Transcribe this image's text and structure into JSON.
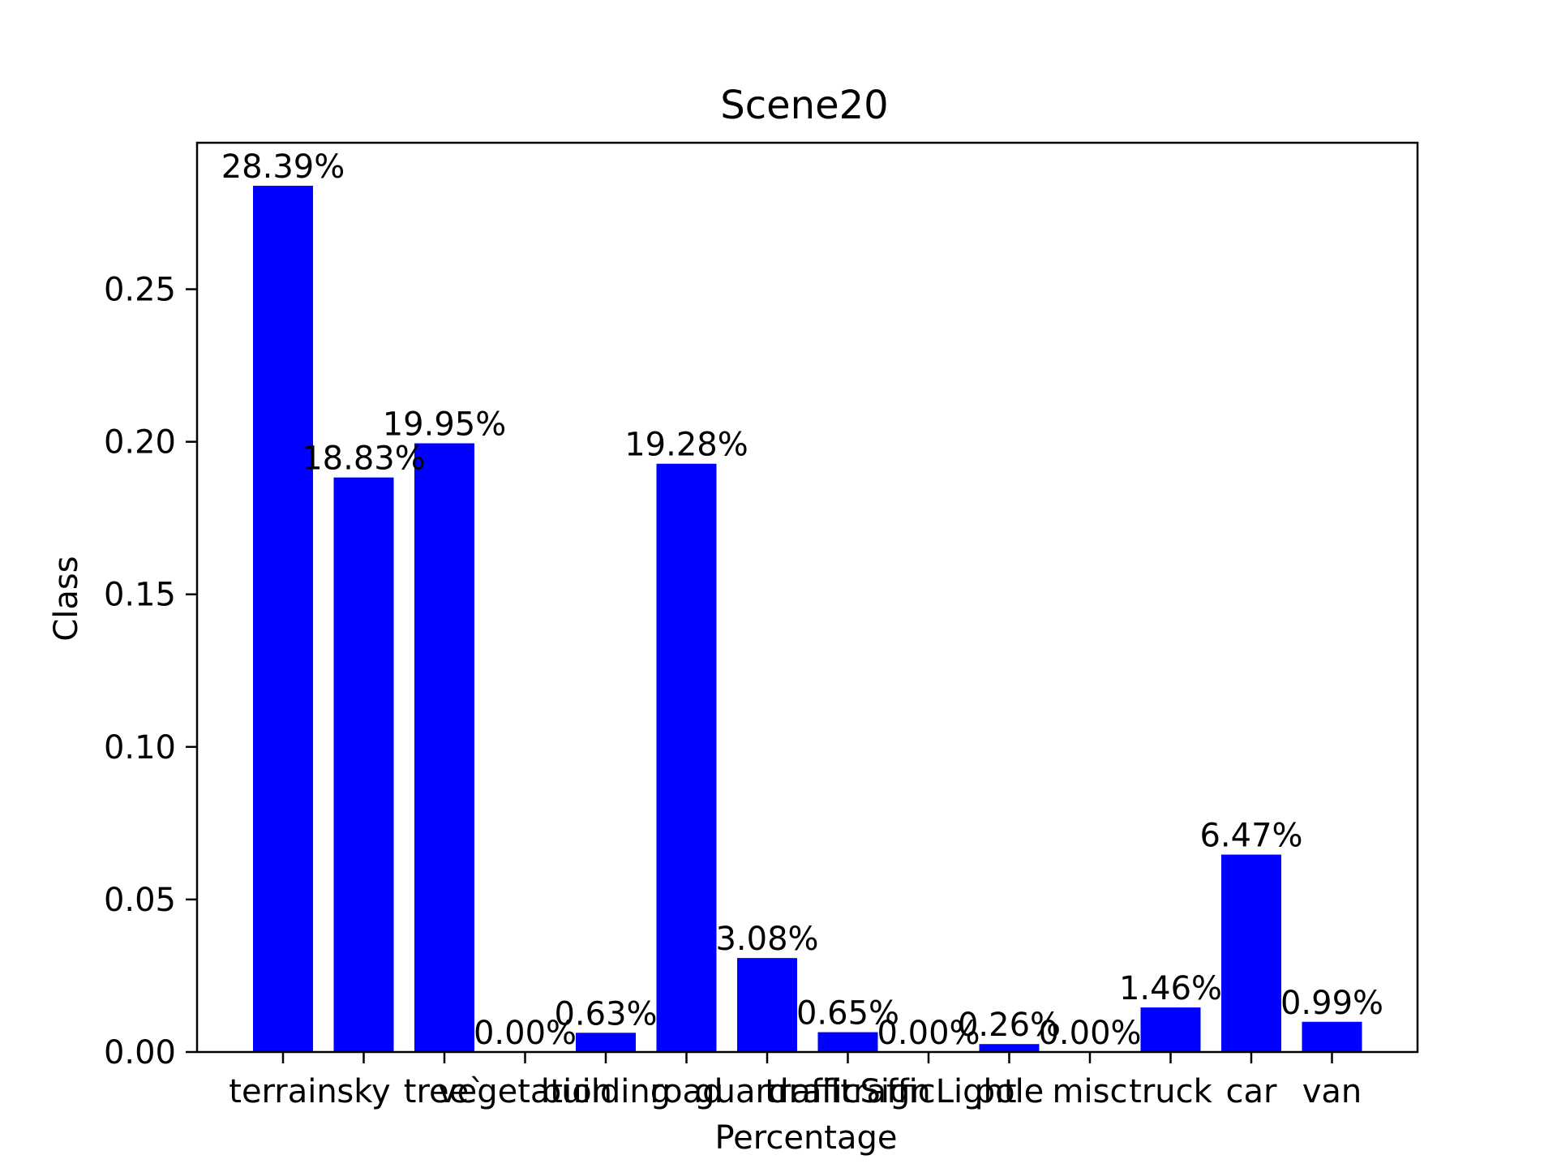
{
  "chart_data": {
    "type": "bar",
    "title": "Scene20",
    "xlabel": "Percentage",
    "ylabel": "Class",
    "categories": [
      "terrain",
      "sky",
      "tree`",
      "vegetation",
      "building",
      "road",
      "guardrail",
      "trafficSign",
      "trafficLight",
      "pole",
      "misc",
      "truck",
      "car",
      "van"
    ],
    "values": [
      0.2839,
      0.1883,
      0.1995,
      0.0,
      0.0063,
      0.1928,
      0.0308,
      0.0065,
      0.0,
      0.0026,
      0.0,
      0.0146,
      0.0647,
      0.0099
    ],
    "data_labels": [
      "28.39%",
      "18.83%",
      "19.95%",
      "0.00%",
      "0.63%",
      "19.28%",
      "3.08%",
      "0.65%",
      "0.00%",
      "0.26%",
      "0.00%",
      "1.46%",
      "6.47%",
      "0.99%"
    ],
    "yticks": [
      0.0,
      0.05,
      0.1,
      0.15,
      0.2,
      0.25
    ],
    "ytick_labels": [
      "0.00",
      "0.05",
      "0.10",
      "0.15",
      "0.20",
      "0.25"
    ],
    "ylim": [
      0,
      0.298
    ],
    "grid": false,
    "bar_color": "#0000ff"
  }
}
